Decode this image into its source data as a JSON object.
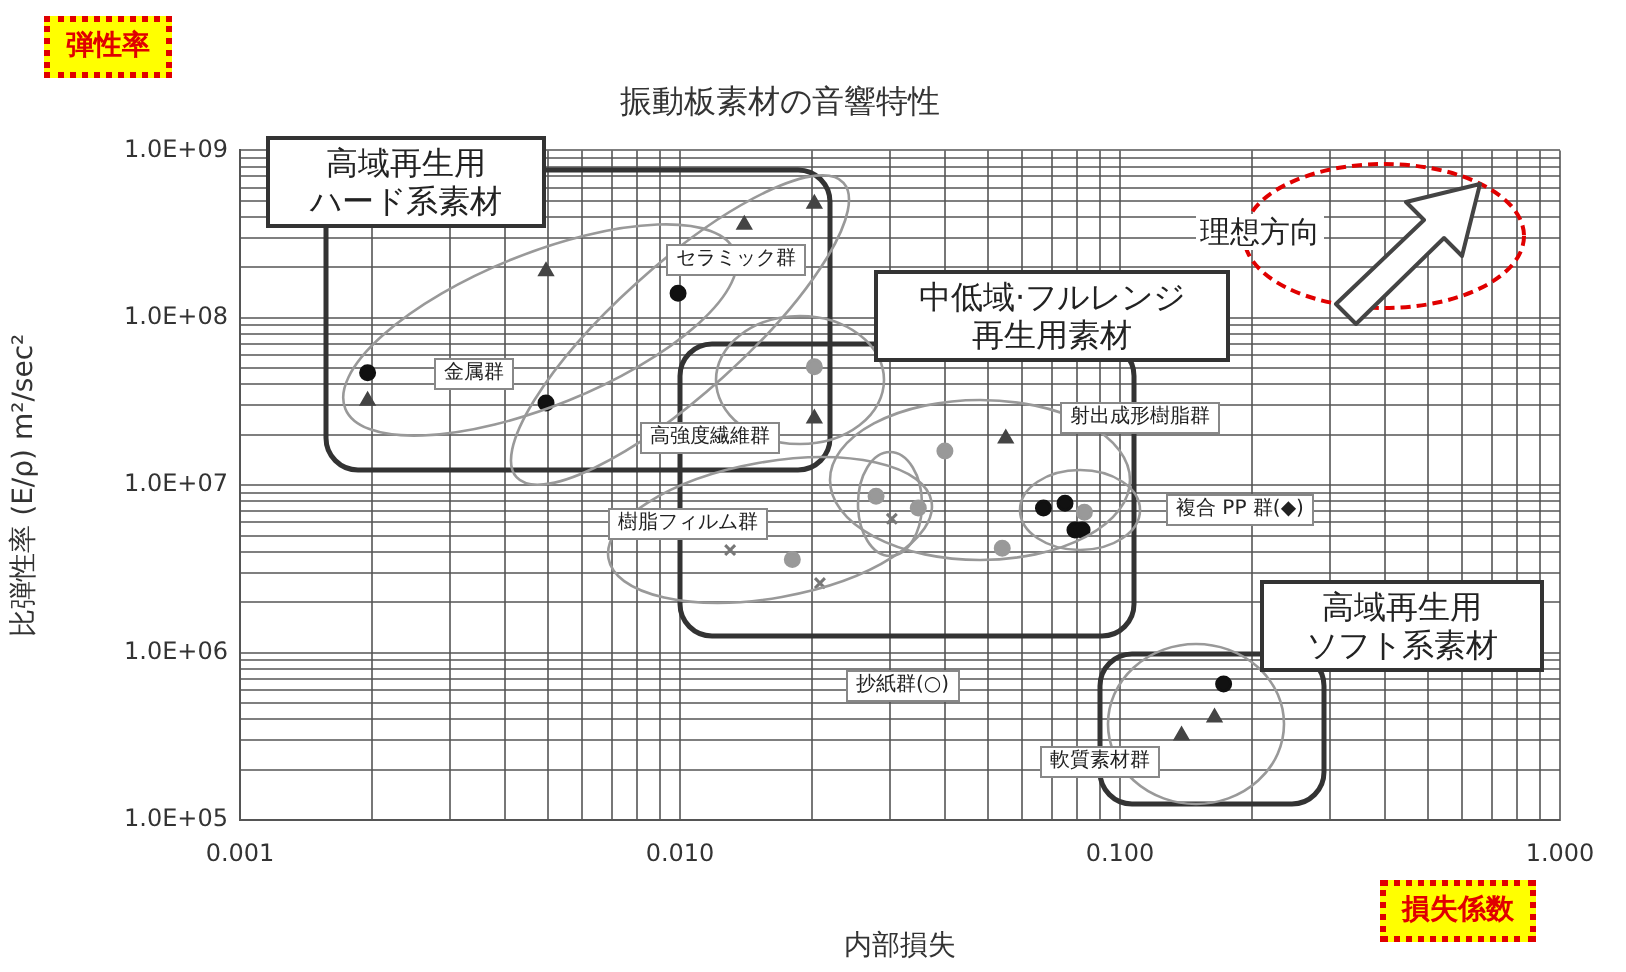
{
  "chart_data": {
    "type": "scatter",
    "title": "振動板素材の音響特性",
    "xlabel": "内部損失",
    "ylabel": "比弾性率 (E/ρ) m²/sec²",
    "log": "xy",
    "grid": true,
    "legend": false,
    "xlim": [
      0.001,
      1
    ],
    "ylim": [
      100000,
      1000000000
    ],
    "xticks": [
      {
        "value": 0.001,
        "label": "0.001"
      },
      {
        "value": 0.002,
        "label": null
      },
      {
        "value": 0.003,
        "label": null
      },
      {
        "value": 0.004,
        "label": null
      },
      {
        "value": 0.005,
        "label": null
      },
      {
        "value": 0.006,
        "label": null
      },
      {
        "value": 0.007,
        "label": null
      },
      {
        "value": 0.008,
        "label": null
      },
      {
        "value": 0.009,
        "label": null
      },
      {
        "value": 0.01,
        "label": "0.010"
      },
      {
        "value": 0.02,
        "label": null
      },
      {
        "value": 0.03,
        "label": null
      },
      {
        "value": 0.04,
        "label": null
      },
      {
        "value": 0.05,
        "label": null
      },
      {
        "value": 0.06,
        "label": null
      },
      {
        "value": 0.07,
        "label": null
      },
      {
        "value": 0.08,
        "label": null
      },
      {
        "value": 0.09,
        "label": null
      },
      {
        "value": 0.1,
        "label": "0.100"
      },
      {
        "value": 0.2,
        "label": null
      },
      {
        "value": 0.3,
        "label": null
      },
      {
        "value": 0.4,
        "label": null
      },
      {
        "value": 0.5,
        "label": null
      },
      {
        "value": 0.6,
        "label": null
      },
      {
        "value": 0.7,
        "label": null
      },
      {
        "value": 0.8,
        "label": null
      },
      {
        "value": 0.9,
        "label": null
      },
      {
        "value": 1,
        "label": "1.000"
      }
    ],
    "yticks": [
      {
        "value": 100000,
        "label": "1.0E+05"
      },
      {
        "value": 200000,
        "label": null
      },
      {
        "value": 300000,
        "label": null
      },
      {
        "value": 400000,
        "label": null
      },
      {
        "value": 500000,
        "label": null
      },
      {
        "value": 600000,
        "label": null
      },
      {
        "value": 700000,
        "label": null
      },
      {
        "value": 800000,
        "label": null
      },
      {
        "value": 900000,
        "label": null
      },
      {
        "value": 1000000,
        "label": "1.0E+06"
      },
      {
        "value": 2000000,
        "label": null
      },
      {
        "value": 3000000,
        "label": null
      },
      {
        "value": 4000000,
        "label": null
      },
      {
        "value": 5000000,
        "label": null
      },
      {
        "value": 6000000,
        "label": null
      },
      {
        "value": 7000000,
        "label": null
      },
      {
        "value": 8000000,
        "label": null
      },
      {
        "value": 9000000,
        "label": null
      },
      {
        "value": 10000000,
        "label": "1.0E+07"
      },
      {
        "value": 20000000,
        "label": null
      },
      {
        "value": 30000000,
        "label": null
      },
      {
        "value": 40000000,
        "label": null
      },
      {
        "value": 50000000,
        "label": null
      },
      {
        "value": 60000000,
        "label": null
      },
      {
        "value": 70000000,
        "label": null
      },
      {
        "value": 80000000,
        "label": null
      },
      {
        "value": 90000000,
        "label": null
      },
      {
        "value": 100000000,
        "label": "1.0E+08"
      },
      {
        "value": 200000000,
        "label": null
      },
      {
        "value": 300000000,
        "label": null
      },
      {
        "value": 400000000,
        "label": null
      },
      {
        "value": 500000000,
        "label": null
      },
      {
        "value": 600000000,
        "label": null
      },
      {
        "value": 700000000,
        "label": null
      },
      {
        "value": 800000000,
        "label": null
      },
      {
        "value": 900000000,
        "label": null
      },
      {
        "value": 1000000000,
        "label": "1.0E+09"
      }
    ],
    "series": [
      {
        "color": "#111111",
        "marker": "circle",
        "x": [
          0.00195,
          0.00496,
          0.0099,
          0.067,
          0.075,
          0.079,
          0.082,
          0.172
        ],
        "values": [
          47000000,
          31000000,
          140000000,
          7300000,
          7800000,
          5400000,
          5400000,
          650000
        ]
      },
      {
        "color": "#444444",
        "marker": "triangle",
        "x": [
          0.00195,
          0.00496,
          0.014,
          0.0202,
          0.0202,
          0.055,
          0.164,
          0.138
        ],
        "values": [
          32000000,
          190000000,
          360000000,
          480000000,
          25000000,
          19000000,
          410000,
          320000
        ]
      },
      {
        "color": "#999999",
        "marker": "circle",
        "x": [
          0.0202,
          0.04,
          0.0279,
          0.0348,
          0.083,
          0.054,
          0.018
        ],
        "values": [
          51000000,
          16000000,
          8600000,
          7300000,
          6900000,
          4200000,
          3600000
        ]
      },
      {
        "color": "#777777",
        "marker": "cross",
        "x": [
          0.013,
          0.0303,
          0.0208
        ],
        "values": [
          4100000,
          6300000,
          2600000
        ]
      }
    ],
    "annotations": [
      "弾性率",
      "損失係数",
      "高域再生用",
      "ハード系素材",
      "中低域·フルレンジ",
      "再生用素材",
      "高域再生用",
      "ソフト系素材",
      "理想方向",
      "セラミック群",
      "金属群",
      "高強度繊維群",
      "射出成形樹脂群",
      "樹脂フィルム群",
      "複合 PP 群(◆)",
      "抄紙群(○)",
      "軟質素材群"
    ]
  }
}
